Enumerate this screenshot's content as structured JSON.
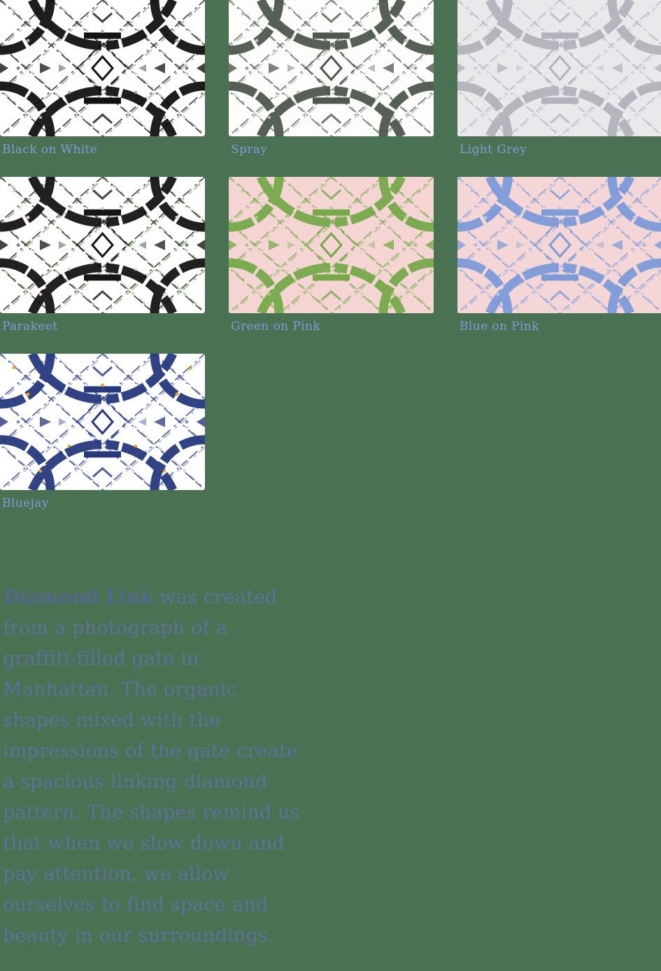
{
  "page": {
    "background": "#4A7151"
  },
  "theme": {
    "label_color": "#7F9BDA",
    "body_color": "#5E719D",
    "title_color": "#53678F"
  },
  "swatches": [
    {
      "name": "Black on White",
      "colors": {
        "bg": "#FFFFFF",
        "main": "#121212",
        "accent": "#7B7B7B",
        "speck": "#ABABAB"
      }
    },
    {
      "name": "Spray",
      "colors": {
        "bg": "#FDFDFB",
        "main": "#4F584E",
        "accent": "#99A1A7",
        "speck": "#B7BDB9"
      }
    },
    {
      "name": "Light Grey",
      "colors": {
        "bg": "#E9E9EC",
        "main": "#B3B3BB",
        "accent": "#D0D0D6",
        "speck": "#C6C6CD"
      }
    },
    {
      "name": "Parakeet",
      "colors": {
        "bg": "#FFFFFF",
        "main": "#161616",
        "accent": "#5E9140",
        "speck": "#F2C4E2"
      }
    },
    {
      "name": "Green on Pink",
      "colors": {
        "bg": "#F4D5D4",
        "main": "#77A94A",
        "accent": "#93BB6A",
        "speck": "#A9C988"
      }
    },
    {
      "name": "Blue on Pink",
      "colors": {
        "bg": "#F5D6D6",
        "main": "#7D9BD9",
        "accent": "#9CB3E3",
        "speck": "#B5C6EB"
      }
    },
    {
      "name": "Bluejay",
      "colors": {
        "bg": "#FFFFFF",
        "main": "#26397E",
        "accent": "#7D88B0",
        "speck": "#EDA61C"
      }
    }
  ],
  "description": {
    "title": "Diamond Link",
    "body": " was created from a photograph of a graffiti-filled gate in Manhattan. The organic shapes mixed with the impressions of the gate create a spacious linking diamond pattern. The shapes remind us that when we slow down and pay attention, we allow ourselves to find space and beauty in our surroundings."
  }
}
